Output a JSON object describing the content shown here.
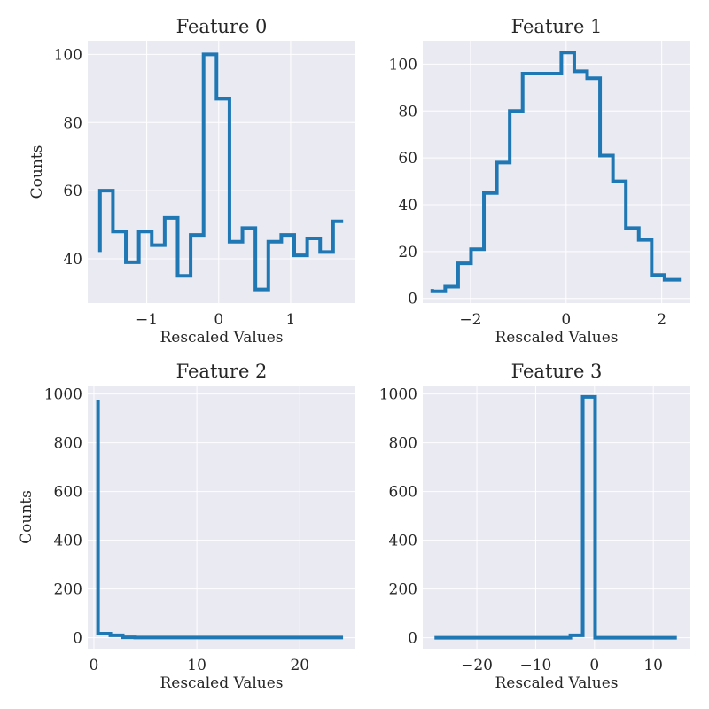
{
  "colors": {
    "axes_bg": "#eaeaf2",
    "grid": "#ffffff",
    "series": "#1f77b4",
    "text": "#262626"
  },
  "chart_data": [
    {
      "type": "line",
      "step": "pre",
      "title": "Feature 0",
      "xlabel": "Rescaled Values",
      "ylabel": "Counts",
      "grid": true,
      "xlim": [
        -1.82,
        1.9
      ],
      "ylim": [
        27,
        104
      ],
      "xticks": [
        -1,
        0,
        1
      ],
      "xtick_labels": [
        "−1",
        "0",
        "1"
      ],
      "yticks": [
        40,
        60,
        80,
        100
      ],
      "ytick_labels": [
        "40",
        "60",
        "80",
        "100"
      ],
      "x": [
        -1.65,
        -1.47,
        -1.29,
        -1.11,
        -0.93,
        -0.75,
        -0.57,
        -0.39,
        -0.21,
        -0.03,
        0.15,
        0.33,
        0.51,
        0.69,
        0.87,
        1.05,
        1.23,
        1.41,
        1.59,
        1.73
      ],
      "y": [
        42,
        60,
        48,
        39,
        48,
        44,
        52,
        35,
        47,
        100,
        87,
        45,
        49,
        31,
        45,
        47,
        41,
        46,
        42,
        51
      ]
    },
    {
      "type": "line",
      "step": "pre",
      "title": "Feature 1",
      "xlabel": "Rescaled Values",
      "ylabel": "",
      "grid": true,
      "xlim": [
        -3.0,
        2.6
      ],
      "ylim": [
        -2,
        110
      ],
      "xticks": [
        -2,
        0,
        2
      ],
      "xtick_labels": [
        "−2",
        "0",
        "2"
      ],
      "yticks": [
        0,
        20,
        40,
        60,
        80,
        100
      ],
      "ytick_labels": [
        "0",
        "20",
        "40",
        "60",
        "80",
        "100"
      ],
      "x": [
        -2.8,
        -2.53,
        -2.26,
        -1.99,
        -1.72,
        -1.45,
        -1.18,
        -0.91,
        -0.64,
        -0.37,
        -0.1,
        0.17,
        0.44,
        0.71,
        0.98,
        1.25,
        1.52,
        1.79,
        2.06,
        2.4
      ],
      "y": [
        4,
        3,
        5,
        15,
        21,
        45,
        58,
        80,
        96,
        96,
        96,
        105,
        97,
        94,
        61,
        50,
        30,
        25,
        10,
        8
      ]
    },
    {
      "type": "line",
      "step": "pre",
      "title": "Feature 2",
      "xlabel": "Rescaled Values",
      "ylabel": "Counts",
      "grid": true,
      "xlim": [
        -0.6,
        25.4
      ],
      "ylim": [
        -45,
        1035
      ],
      "xticks": [
        0,
        10,
        20
      ],
      "xtick_labels": [
        "0",
        "10",
        "20"
      ],
      "yticks": [
        0,
        200,
        400,
        600,
        800,
        1000
      ],
      "ytick_labels": [
        "0",
        "200",
        "400",
        "600",
        "800",
        "1000"
      ],
      "x": [
        0.4,
        1.6,
        2.8,
        4.0,
        5.2,
        6.4,
        7.6,
        8.8,
        10.0,
        11.2,
        12.4,
        13.6,
        14.8,
        16.0,
        17.2,
        18.4,
        19.6,
        20.8,
        22.0,
        24.2
      ],
      "y": [
        977,
        17,
        10,
        2,
        1,
        1,
        1,
        1,
        1,
        1,
        1,
        1,
        1,
        1,
        1,
        1,
        1,
        1,
        1,
        1
      ]
    },
    {
      "type": "line",
      "step": "pre",
      "title": "Feature 3",
      "xlabel": "Rescaled Values",
      "ylabel": "",
      "grid": true,
      "xlim": [
        -29.2,
        16.3
      ],
      "ylim": [
        -45,
        1035
      ],
      "xticks": [
        -20,
        -10,
        0,
        10
      ],
      "xtick_labels": [
        "−20",
        "−10",
        "0",
        "10"
      ],
      "yticks": [
        0,
        200,
        400,
        600,
        800,
        1000
      ],
      "ytick_labels": [
        "0",
        "200",
        "400",
        "600",
        "800",
        "1000"
      ],
      "x": [
        -27.2,
        -25.1,
        -23.0,
        -20.9,
        -18.8,
        -16.7,
        -14.6,
        -12.5,
        -10.4,
        -8.3,
        -6.2,
        -4.1,
        -2.0,
        0.1,
        2.2,
        4.3,
        6.4,
        8.5,
        10.6,
        14.0
      ],
      "y": [
        0,
        0,
        0,
        0,
        0,
        0,
        0,
        0,
        0,
        0,
        0,
        0,
        10,
        988,
        0,
        0,
        0,
        0,
        0,
        0
      ]
    }
  ]
}
